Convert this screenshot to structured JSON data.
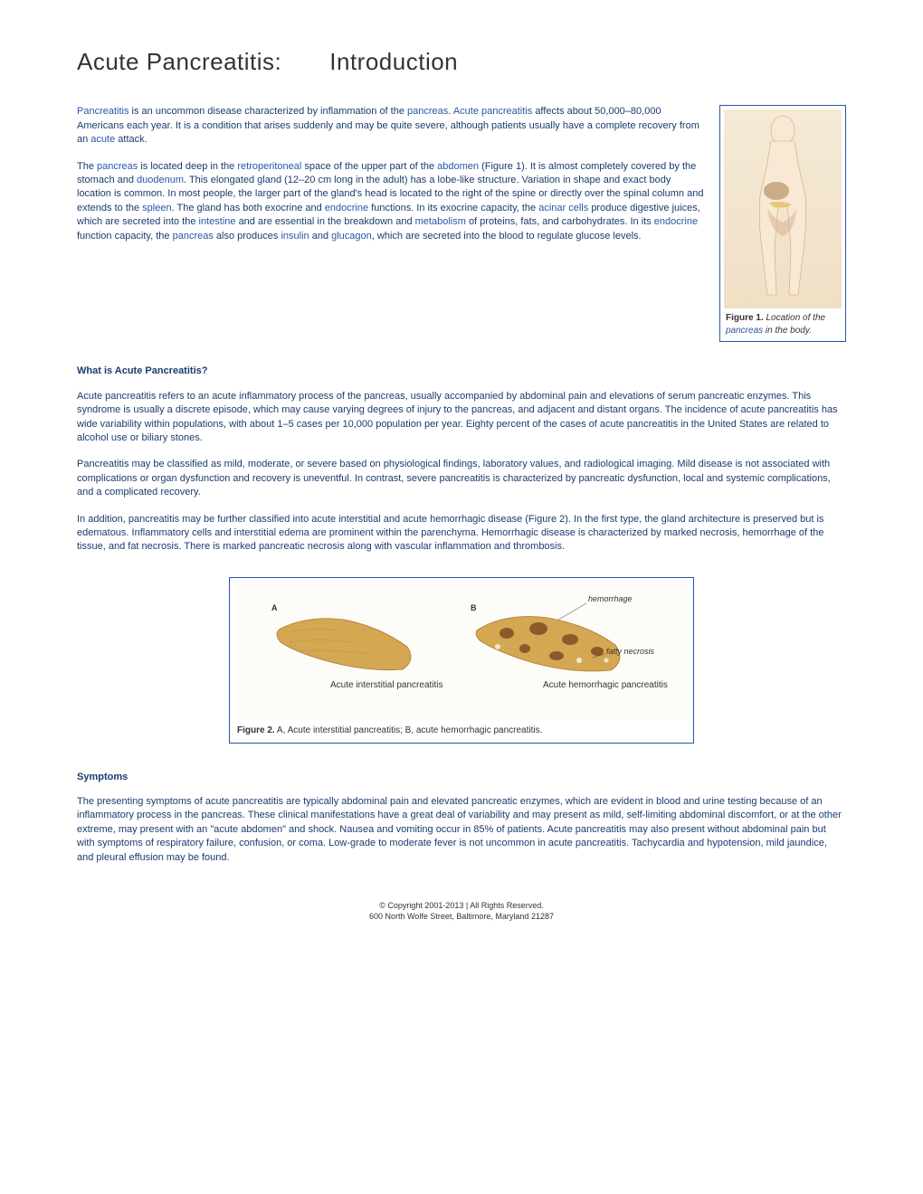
{
  "title": "Acute  Pancreatitis:  Introduction",
  "intro": {
    "p1_parts": [
      {
        "t": "Pancreatitis ",
        "link": true
      },
      {
        "t": "is an uncommon disease characterized by inflammation of the "
      },
      {
        "t": "pancreas",
        "link": true
      },
      {
        "t": ". "
      },
      {
        "t": "Acute pancreatitis ",
        "link": true
      },
      {
        "t": "affects about 50,000–80,000 Americans each year. It is a condition that arises suddenly and may be quite severe, although patients usually have a complete recovery from an "
      },
      {
        "t": "acute ",
        "link": true
      },
      {
        "t": " attack."
      }
    ],
    "p2_parts": [
      {
        "t": "The "
      },
      {
        "t": "pancreas ",
        "link": true
      },
      {
        "t": "is located deep in the "
      },
      {
        "t": "retroperitoneal ",
        "link": true
      },
      {
        "t": "space of the upper part of the "
      },
      {
        "t": "abdomen ",
        "link": true
      },
      {
        "t": "(Figure 1). It is almost completely covered by the stomach and "
      },
      {
        "t": "duodenum",
        "link": true
      },
      {
        "t": ". This elongated gland (12–20 cm long in the adult) has a lobe-like structure. Variation in shape and exact body location is common. In most people, the larger part of the gland's head is located to the right of the spine or directly over the spinal column and extends to the "
      },
      {
        "t": "spleen",
        "link": true
      },
      {
        "t": ". The gland has both exocrine and "
      },
      {
        "t": "endocrine ",
        "link": true
      },
      {
        "t": "functions. In its exocrine capacity, the "
      },
      {
        "t": "acinar cells ",
        "link": true
      },
      {
        "t": "produce digestive juices, which are secreted into the "
      },
      {
        "t": "intestine ",
        "link": true
      },
      {
        "t": "and are essential in the breakdown and "
      },
      {
        "t": "metabolism ",
        "link": true
      },
      {
        "t": "of proteins, fats, and carbohydrates. In its "
      },
      {
        "t": "endocrine ",
        "link": true
      },
      {
        "t": "function capacity, the "
      },
      {
        "t": "pancreas ",
        "link": true
      },
      {
        "t": "also produces "
      },
      {
        "t": "insulin ",
        "link": true
      },
      {
        "t": "and "
      },
      {
        "t": "glucagon",
        "link": true
      },
      {
        "t": ", which are secreted into the blood to regulate glucose  levels."
      }
    ]
  },
  "figure1": {
    "label": "Figure 1.",
    "caption_pre": " Location of the ",
    "caption_link": "pancreas",
    "caption_post": " in the body."
  },
  "section1": {
    "heading": "What is Acute Pancreatitis?",
    "p1": "Acute pancreatitis refers to an acute inflammatory process of the pancreas, usually accompanied by abdominal pain and elevations of serum pancreatic enzymes. This syndrome is usually a discrete episode, which may cause varying degrees of injury to the pancreas, and adjacent and distant organs. The incidence of acute pancreatitis has wide variability within populations, with about 1–5 cases per 10,000 population per year. Eighty percent of the cases of acute pancreatitis in the United States are related to alcohol use or biliary  stones.",
    "p2": "Pancreatitis may be classified as mild, moderate, or severe based on physiological findings, laboratory values, and radiological imaging. Mild disease is not associated with complications or organ dysfunction and recovery is uneventful. In contrast, severe pancreatitis is characterized by pancreatic dysfunction, local and systemic complications, and a complicated  recovery.",
    "p3": "In addition, pancreatitis may be further classified into acute interstitial and acute hemorrhagic disease (Figure 2). In the first type, the gland architecture is preserved but is edematous. Inflammatory cells and interstitial edema are prominent within the parenchyma. Hemorrhagic disease is characterized by marked necrosis, hemorrhage of the tissue, and fat necrosis. There is marked pancreatic necrosis along with vascular inflammation and   thrombosis."
  },
  "figure2": {
    "label_a": "A",
    "label_b": "B",
    "label_hemorrhage": "hemorrhage",
    "label_fatty": "fatty necrosis",
    "label_interstitial": "Acute interstitial pancreatitis",
    "label_hemorrhagic": "Acute hemorrhagic pancreatitis",
    "caption_label": "Figure 2.",
    "caption_text": " A, Acute interstitial pancreatitis; B, acute hemorrhagic pancreatitis."
  },
  "section2": {
    "heading": "Symptoms",
    "p1": "The presenting symptoms of acute pancreatitis are typically abdominal pain and elevated pancreatic enzymes, which are evident in blood and urine testing because of an inflammatory process in the pancreas. These clinical manifestations have a great deal of variability and may present as mild, self-limiting abdominal discomfort, or at the other extreme, may present with an \"acute abdomen\" and shock. Nausea and vomiting occur in 85% of patients. Acute pancreatitis may also present without abdominal pain but with symptoms of respiratory failure, confusion, or coma. Low-grade to moderate fever is not uncommon in acute pancreatitis. Tachycardia and hypotension, mild jaundice, and pleural effusion may be  found."
  },
  "footer": {
    "line1": "© Copyright 2001-2013 | All Rights Reserved.",
    "line2": "600 North Wolfe Street, Baltimore, Maryland 21287"
  },
  "colors": {
    "body_text": "#1a3b6e",
    "link": "#2956a8",
    "figure_border": "#2956a8",
    "heading": "#333333",
    "skin": "#f5ead6",
    "pancreas_fill": "#d4a853",
    "pancreas_stroke": "#a67c2e"
  }
}
